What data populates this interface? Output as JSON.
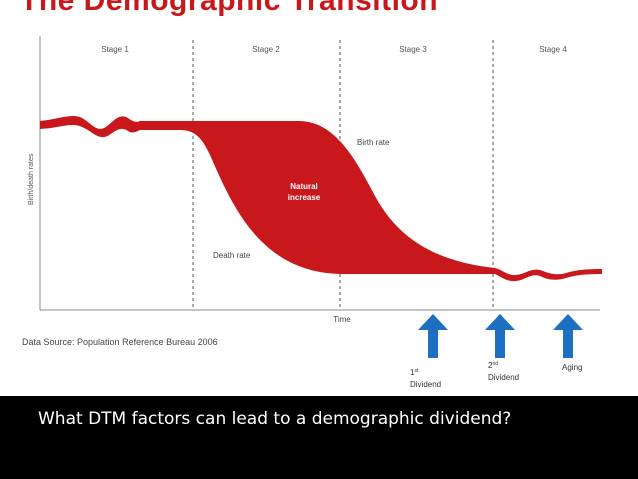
{
  "slide": {
    "title": "The Demographic Transition",
    "caption": "What DTM factors can lead to a demographic dividend?"
  },
  "diagram": {
    "stages": [
      "Stage 1",
      "Stage 2",
      "Stage 3",
      "Stage 4"
    ],
    "y_axis_label": "Birth/death rates",
    "x_axis_label": "Time",
    "birth_rate_label": "Birth rate",
    "death_rate_label": "Death rate",
    "natural_increase_line1": "Natural",
    "natural_increase_line2": "increase",
    "source": "Data Source: Population Reference Bureau 2006",
    "fill_color": "#c8181c",
    "arrow_color": "#1d6fc1"
  },
  "arrows": [
    {
      "base": "1",
      "sup": "st",
      "line2": "Dividend"
    },
    {
      "base": "2",
      "sup": "nd",
      "line2": "Dividend"
    },
    {
      "base": "Aging",
      "sup": "",
      "line2": ""
    }
  ]
}
